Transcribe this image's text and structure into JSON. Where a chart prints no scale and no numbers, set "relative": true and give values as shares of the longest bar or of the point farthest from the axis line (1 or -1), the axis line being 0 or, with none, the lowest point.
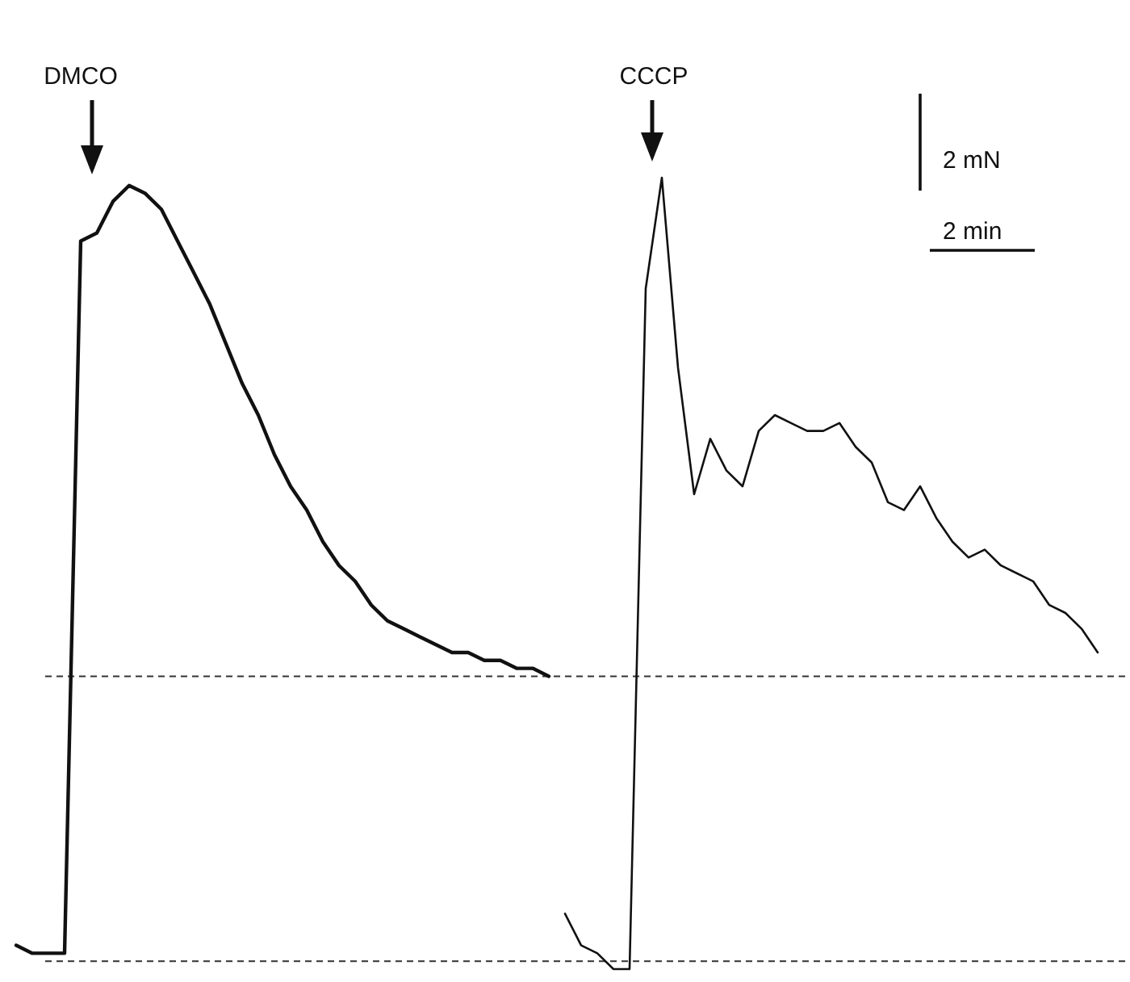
{
  "chart_data": {
    "type": "line",
    "relative": true,
    "categories": [
      null,
      null,
      null,
      null,
      null,
      null,
      null,
      null,
      null,
      null,
      null,
      null,
      null,
      null,
      null,
      null,
      null,
      null,
      null,
      null,
      null,
      null,
      null,
      null,
      null,
      null,
      null,
      null,
      null,
      null,
      null,
      null,
      null,
      null,
      null,
      null,
      null,
      null,
      null,
      null,
      null,
      null,
      null,
      null,
      null,
      null,
      null,
      null,
      null,
      null,
      null,
      null,
      null,
      null,
      null,
      null,
      null,
      null,
      null,
      null,
      null,
      null,
      null,
      null,
      null,
      null,
      null,
      null
    ],
    "series": [
      {
        "color": "#111111",
        "values": [
          0.03,
          0.02,
          0.02,
          0.02,
          0.92,
          0.93,
          0.97,
          0.99,
          0.98,
          0.96,
          0.92,
          0.88,
          0.84,
          0.79,
          0.74,
          0.7,
          0.65,
          0.61,
          0.58,
          0.54,
          0.51,
          0.49,
          0.46,
          0.44,
          0.43,
          0.42,
          0.41,
          0.4,
          0.4,
          0.39,
          0.39,
          0.38,
          0.38,
          0.37,
          null,
          null,
          null,
          null,
          null,
          null,
          null,
          null,
          null,
          null,
          null,
          null,
          null,
          null,
          null,
          null,
          null,
          null,
          null,
          null,
          null,
          null,
          null,
          null,
          null,
          null,
          null,
          null,
          null,
          null,
          null,
          null,
          null,
          null
        ]
      },
      {
        "color": "#111111",
        "values": [
          null,
          null,
          null,
          null,
          null,
          null,
          null,
          null,
          null,
          null,
          null,
          null,
          null,
          null,
          null,
          null,
          null,
          null,
          null,
          null,
          null,
          null,
          null,
          null,
          null,
          null,
          null,
          null,
          null,
          null,
          null,
          null,
          null,
          null,
          0.07,
          0.03,
          0.02,
          0.0,
          0.0,
          0.86,
          1.0,
          0.76,
          0.6,
          0.67,
          0.63,
          0.61,
          0.68,
          0.7,
          0.69,
          0.68,
          0.68,
          0.69,
          0.66,
          0.64,
          0.59,
          0.58,
          0.61,
          0.57,
          0.54,
          0.52,
          0.53,
          0.51,
          0.5,
          0.49,
          0.46,
          0.45,
          0.43,
          0.4
        ]
      }
    ],
    "ref_lines": [
      {
        "axis": "y",
        "value": 0.01,
        "color": "#333333",
        "line_style": "dashed"
      },
      {
        "axis": "y",
        "value": 0.37,
        "color": "#333333",
        "line_style": "dashed"
      }
    ],
    "annotations": [
      "DMCO",
      "CCCP",
      "2 mN",
      "2 min"
    ]
  }
}
